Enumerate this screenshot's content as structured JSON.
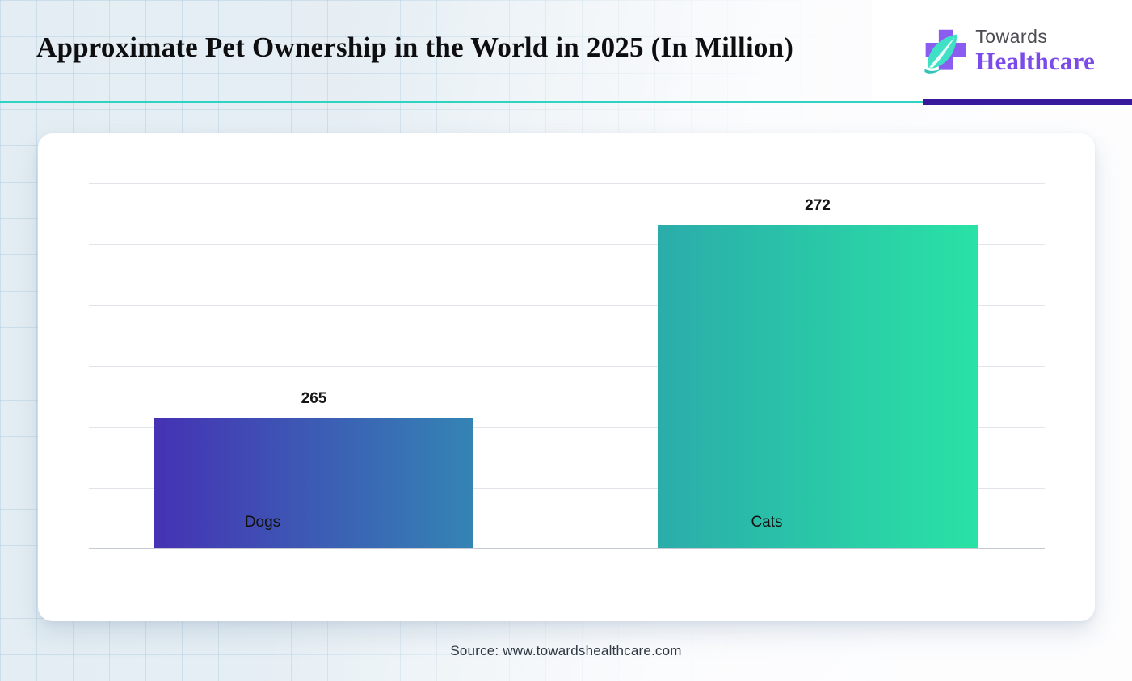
{
  "header": {
    "title": "Approximate Pet Ownership in the World in 2025 (In Million)",
    "logo": {
      "top": "Towards",
      "bottom": "Healthcare"
    }
  },
  "footer": {
    "source": "Source: www.towardshealthcare.com"
  },
  "colors": {
    "divider_teal": "#2ed3c1",
    "divider_purple": "#38189b",
    "logo_purple_text": "#7a4be8",
    "logo_cross_purple": "#8a5cf0",
    "logo_leaf_teal": "#3fe0c5",
    "dogs_bar_gradient": [
      "#4532b4",
      "#3484b4"
    ],
    "cats_bar_gradient": [
      "#2bacaa",
      "#29e2a5"
    ]
  },
  "chart_data": {
    "type": "bar",
    "title": "Approximate Pet Ownership in the World in 2025 (In Million)",
    "categories": [
      "Dogs",
      "Cats"
    ],
    "values": [
      265,
      272
    ],
    "unit": "Million",
    "xlabel": "",
    "ylabel": "",
    "ylim": [
      260.3,
      273.6
    ],
    "grid": true,
    "y_tick_labels_visible": false,
    "data_labels": true,
    "legend": "none"
  }
}
